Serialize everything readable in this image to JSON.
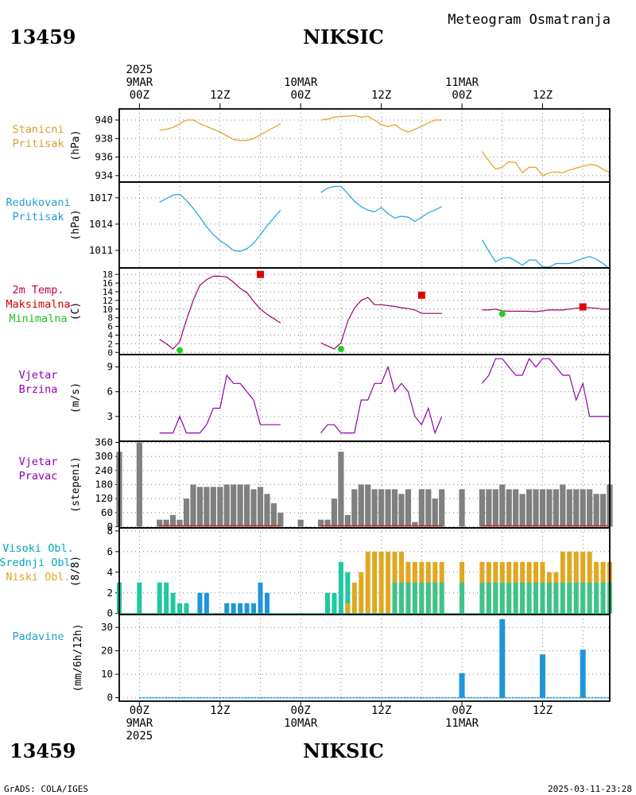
{
  "header": {
    "station_id": "13459",
    "station_name": "NIKSIC",
    "product_title": "Meteogram Osmatranja"
  },
  "footer": {
    "credit": "GrADS: COLA/IGES",
    "timestamp": "2025-03-11-23:28"
  },
  "colors": {
    "pressure_station": "#E0A020",
    "pressure_reduced": "#20A0E0",
    "temperature": "#A0006A",
    "temp_max_marker": "#E00000",
    "temp_min_marker": "#20D020",
    "wind": "#9000B0",
    "wind_dir_bars": "#808080",
    "cloud_high": "#00A0C0",
    "cloud_mid": "#20C8A0",
    "cloud_low": "#E0A820",
    "cloud_bar_blue": "#1E96D8",
    "precip": "#1E96D8",
    "grid": "#808080",
    "precip_label": "#20A0D0",
    "temp_label": "#C00050",
    "temp_max_label": "#D00000",
    "temp_min_label": "#20C020",
    "wind_label": "#9000B0",
    "pressure_label": "#D8A030",
    "reduced_label": "#20A0D0",
    "cloud_high_label": "#00A8B8"
  },
  "time_axis": {
    "top_labels": [
      {
        "hour": 0,
        "lines": [
          "2025",
          "9MAR",
          "00Z"
        ]
      },
      {
        "hour": 12,
        "lines": [
          "",
          "",
          "12Z"
        ]
      },
      {
        "hour": 24,
        "lines": [
          "",
          "10MAR",
          "00Z"
        ]
      },
      {
        "hour": 36,
        "lines": [
          "",
          "",
          "12Z"
        ]
      },
      {
        "hour": 48,
        "lines": [
          "",
          "11MAR",
          "00Z"
        ]
      },
      {
        "hour": 60,
        "lines": [
          "",
          "",
          "12Z"
        ]
      }
    ],
    "bottom_labels": [
      {
        "hour": 0,
        "lines": [
          "00Z",
          "9MAR",
          "2025"
        ]
      },
      {
        "hour": 12,
        "lines": [
          "12Z",
          "",
          ""
        ]
      },
      {
        "hour": 24,
        "lines": [
          "00Z",
          "10MAR",
          ""
        ]
      },
      {
        "hour": 36,
        "lines": [
          "12Z",
          "",
          ""
        ]
      },
      {
        "hour": 48,
        "lines": [
          "00Z",
          "11MAR",
          ""
        ]
      },
      {
        "hour": 60,
        "lines": [
          "12Z",
          "",
          ""
        ]
      }
    ],
    "range_hours": [
      -3,
      70
    ]
  },
  "chart_data": [
    {
      "id": "station_pressure",
      "type": "line",
      "labels": [
        "Stanicni",
        "Pritisak"
      ],
      "ylabel": "(hPa)",
      "yticks": [
        934,
        936,
        938,
        940
      ],
      "ylim": [
        933.3,
        941.2
      ],
      "grid": true,
      "series": [
        {
          "x": [
            3,
            4,
            5,
            6,
            7,
            8,
            9,
            10,
            11,
            12,
            13,
            14,
            15,
            16,
            17,
            18,
            19,
            20,
            21
          ],
          "y": [
            938.9,
            939.0,
            939.2,
            939.6,
            940.0,
            940.0,
            939.6,
            939.3,
            939.0,
            938.7,
            938.3,
            937.9,
            937.8,
            937.8,
            938.0,
            938.4,
            938.8,
            939.2,
            939.6
          ]
        },
        {
          "x": [
            27,
            28,
            29,
            30,
            31,
            32,
            33,
            34,
            35,
            36,
            37,
            38,
            39,
            40,
            41,
            42,
            43,
            44,
            45
          ],
          "y": [
            940.0,
            940.1,
            940.3,
            940.4,
            940.4,
            940.5,
            940.3,
            940.4,
            940.0,
            939.5,
            939.3,
            939.5,
            939.0,
            938.7,
            939.0,
            939.3,
            939.7,
            940.0,
            940.0
          ]
        },
        {
          "x": [
            51,
            52,
            53,
            54,
            55,
            56,
            57,
            58,
            59,
            60,
            61,
            62,
            63,
            64,
            65,
            66,
            67,
            68,
            69,
            70
          ],
          "y": [
            936.6,
            935.6,
            934.7,
            934.9,
            935.5,
            935.4,
            934.3,
            934.9,
            934.9,
            934.0,
            934.3,
            934.4,
            934.3,
            934.6,
            934.8,
            935.0,
            935.2,
            935.1,
            934.7,
            934.3
          ]
        }
      ]
    },
    {
      "id": "reduced_pressure",
      "type": "line",
      "labels": [
        "Redukovani",
        "Pritisak"
      ],
      "ylabel": "(hPa)",
      "yticks": [
        1011,
        1014,
        1017
      ],
      "ylim": [
        1009.0,
        1018.8
      ],
      "grid": true,
      "series": [
        {
          "x": [
            3,
            4,
            5,
            6,
            7,
            8,
            9,
            10,
            11,
            12,
            13,
            14,
            15,
            16,
            17,
            18,
            19,
            20,
            21
          ],
          "y": [
            1016.5,
            1016.9,
            1017.3,
            1017.4,
            1016.7,
            1015.8,
            1014.8,
            1013.7,
            1012.8,
            1012.1,
            1011.6,
            1011.0,
            1010.9,
            1011.2,
            1011.8,
            1012.8,
            1013.8,
            1014.7,
            1015.6
          ]
        },
        {
          "x": [
            27,
            28,
            29,
            30,
            31,
            32,
            33,
            34,
            35,
            36,
            37,
            38,
            39,
            40,
            41,
            42,
            43,
            44,
            45
          ],
          "y": [
            1017.6,
            1018.1,
            1018.3,
            1018.3,
            1017.5,
            1016.6,
            1016.0,
            1015.6,
            1015.4,
            1015.9,
            1015.2,
            1014.7,
            1014.9,
            1014.8,
            1014.3,
            1014.8,
            1015.3,
            1015.6,
            1016.0
          ]
        },
        {
          "x": [
            51,
            52,
            53,
            54,
            55,
            56,
            57,
            58,
            59,
            60,
            61,
            62,
            63,
            64,
            65,
            66,
            67,
            68,
            69,
            70
          ],
          "y": [
            1012.2,
            1010.9,
            1009.7,
            1010.1,
            1010.2,
            1009.8,
            1009.3,
            1009.9,
            1009.9,
            1009.1,
            1009.1,
            1009.5,
            1009.5,
            1009.5,
            1009.8,
            1010.1,
            1010.3,
            1010.0,
            1009.5,
            1008.9
          ]
        }
      ]
    },
    {
      "id": "temperature",
      "type": "line",
      "labels": [
        "2m Temp.",
        "Maksimalna",
        "Minimalna"
      ],
      "ylabel": "(C)",
      "yticks": [
        0,
        2,
        4,
        6,
        8,
        10,
        12,
        14,
        16,
        18
      ],
      "ylim": [
        -0.5,
        19.5
      ],
      "grid": true,
      "series": [
        {
          "x": [
            3,
            4,
            5,
            6,
            7,
            8,
            9,
            10,
            11,
            12,
            13,
            14,
            15,
            16,
            17,
            18,
            19,
            20,
            21
          ],
          "y": [
            3.0,
            2.0,
            0.8,
            2.5,
            7.5,
            12.0,
            15.5,
            16.8,
            17.6,
            17.6,
            17.4,
            16.2,
            14.8,
            13.8,
            11.8,
            10.0,
            8.8,
            7.8,
            6.8
          ]
        },
        {
          "x": [
            27,
            28,
            29,
            30,
            31,
            32,
            33,
            34,
            35,
            36,
            37,
            38,
            39,
            40,
            41,
            42,
            43,
            44,
            45
          ],
          "y": [
            2.2,
            1.5,
            0.8,
            2.2,
            7.2,
            10.2,
            12.0,
            12.7,
            11.0,
            11.0,
            10.8,
            10.6,
            10.3,
            10.1,
            9.8,
            9.0,
            9.0,
            9.0,
            9.0
          ]
        },
        {
          "x": [
            51,
            52,
            53,
            54,
            55,
            56,
            57,
            58,
            59,
            60,
            61,
            62,
            63,
            64,
            65,
            66,
            67,
            68,
            69,
            70
          ],
          "y": [
            9.8,
            9.8,
            10.0,
            9.6,
            9.5,
            9.5,
            9.5,
            9.5,
            9.4,
            9.6,
            9.8,
            9.8,
            9.8,
            10.0,
            10.2,
            10.3,
            10.3,
            10.2,
            10.0,
            10.0
          ]
        }
      ],
      "max_points": [
        {
          "x": 18,
          "y": 18.0
        },
        {
          "x": 42,
          "y": 13.2
        },
        {
          "x": 66,
          "y": 10.5
        }
      ],
      "min_points": [
        {
          "x": 6,
          "y": 0.5
        },
        {
          "x": 30,
          "y": 0.8
        },
        {
          "x": 54,
          "y": 8.9
        }
      ]
    },
    {
      "id": "wind_speed",
      "type": "line",
      "labels": [
        "Vjetar",
        "Brzina"
      ],
      "ylabel": "(m/s)",
      "yticks": [
        3,
        6,
        9
      ],
      "ylim": [
        0,
        10.5
      ],
      "grid": true,
      "series": [
        {
          "x": [
            3,
            4,
            5,
            6,
            7,
            8,
            9,
            10,
            11,
            12,
            13,
            14,
            15,
            16,
            17,
            18,
            19,
            20,
            21
          ],
          "y": [
            1,
            1,
            1,
            3,
            1,
            1,
            1,
            2,
            4,
            4,
            8,
            7,
            7,
            6,
            5,
            2,
            2,
            2,
            2
          ]
        },
        {
          "x": [
            27,
            28,
            29,
            30,
            31,
            32,
            33,
            34,
            35,
            36,
            37,
            38,
            39,
            40,
            41,
            42,
            43,
            44,
            45
          ],
          "y": [
            1,
            2,
            2,
            1,
            1,
            1,
            5,
            5,
            7,
            7,
            9,
            6,
            7,
            6,
            3,
            2,
            4,
            1,
            3
          ]
        },
        {
          "x": [
            51,
            52,
            53,
            54,
            55,
            56,
            57,
            58,
            59,
            60,
            61,
            62,
            63,
            64,
            65,
            66,
            67,
            68,
            69,
            70
          ],
          "y": [
            7,
            8,
            10,
            10,
            9,
            8,
            8,
            10,
            9,
            10,
            10,
            9,
            8,
            8,
            5,
            7,
            3,
            3,
            3,
            3
          ]
        }
      ]
    },
    {
      "id": "wind_direction",
      "type": "bar",
      "labels": [
        "Vjetar",
        "Pravac"
      ],
      "ylabel": "(stepeni)",
      "yticks": [
        0,
        60,
        120,
        180,
        240,
        300,
        360
      ],
      "ylim": [
        -5,
        365
      ],
      "grid": true,
      "x": [
        -3,
        0,
        3,
        4,
        5,
        6,
        7,
        8,
        9,
        10,
        11,
        12,
        13,
        14,
        15,
        16,
        17,
        18,
        19,
        20,
        21,
        24,
        27,
        28,
        29,
        30,
        31,
        32,
        33,
        34,
        35,
        36,
        37,
        38,
        39,
        40,
        41,
        42,
        43,
        44,
        45,
        48,
        51,
        52,
        53,
        54,
        55,
        56,
        57,
        58,
        59,
        60,
        61,
        62,
        63,
        64,
        65,
        66,
        67,
        68,
        69,
        70
      ],
      "values": [
        320,
        360,
        30,
        30,
        50,
        30,
        120,
        180,
        170,
        170,
        170,
        170,
        180,
        180,
        180,
        180,
        160,
        170,
        140,
        100,
        60,
        30,
        30,
        30,
        120,
        320,
        50,
        160,
        180,
        180,
        160,
        160,
        160,
        160,
        140,
        160,
        20,
        160,
        160,
        120,
        160,
        160,
        160,
        160,
        160,
        180,
        160,
        160,
        140,
        160,
        160,
        160,
        160,
        160,
        180,
        160,
        160,
        160,
        160,
        140,
        140,
        180
      ],
      "baseline_color_red": true
    },
    {
      "id": "clouds",
      "type": "bar",
      "labels": [
        "Visoki Obl.",
        "Srednji Obl.",
        "Niski Obl."
      ],
      "ylabel": "(8/8)",
      "yticks": [
        0,
        2,
        4,
        6,
        8
      ],
      "ylim": [
        -0.1,
        8.3
      ],
      "grid": true,
      "series": [
        {
          "name": "blue",
          "x": [
            9,
            10,
            13,
            14,
            15,
            16,
            17,
            18,
            19
          ],
          "values": [
            2,
            2,
            1,
            1,
            1,
            1,
            1,
            3,
            2
          ]
        },
        {
          "name": "teal",
          "x": [
            -3,
            0,
            3,
            4,
            5,
            6,
            7,
            28,
            29,
            30,
            31
          ],
          "values": [
            3,
            3,
            3,
            3,
            2,
            1,
            1,
            2,
            2,
            5,
            4
          ]
        },
        {
          "name": "orange",
          "x": [
            31,
            32,
            33,
            34,
            35,
            36,
            37,
            38,
            39,
            40,
            41,
            42,
            43,
            44,
            45,
            48,
            51,
            52,
            53,
            54,
            55,
            56,
            57,
            58,
            59,
            60,
            61,
            62,
            63,
            64,
            65,
            66,
            67,
            68,
            69,
            70
          ],
          "values": [
            1,
            3,
            4,
            6,
            6,
            6,
            6,
            6,
            6,
            5,
            5,
            5,
            5,
            5,
            5,
            5,
            5,
            5,
            5,
            5,
            5,
            5,
            5,
            5,
            5,
            5,
            4,
            4,
            6,
            6,
            6,
            6,
            6,
            5,
            5,
            5
          ]
        }
      ]
    },
    {
      "id": "precipitation",
      "type": "bar",
      "labels": [
        "Padavine"
      ],
      "ylabel": "(mm/6h/12h)",
      "yticks": [
        0,
        10,
        20,
        30
      ],
      "ylim": [
        -1.5,
        35.5
      ],
      "grid": true,
      "x": [
        48,
        54,
        60,
        66
      ],
      "values": [
        10.5,
        33.5,
        18.5,
        20.5
      ]
    }
  ]
}
